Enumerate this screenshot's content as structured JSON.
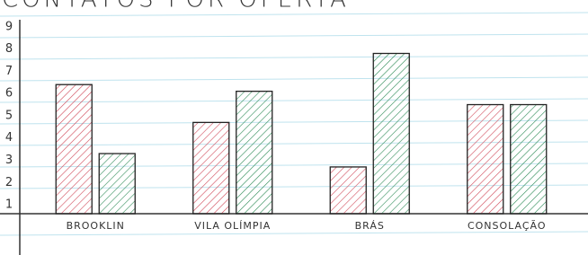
{
  "chart_data": {
    "type": "bar",
    "title": "CONTATOS POR OFERTA",
    "categories": [
      "BROOKLIN",
      "VILA OLÍMPIA",
      "BRÁS",
      "CONSOLAÇÃO"
    ],
    "series": [
      {
        "color": "#d04a5a",
        "values": [
          6.4,
          4.7,
          2.7,
          5.5
        ]
      },
      {
        "color": "#2e8b57",
        "values": [
          3.3,
          6.1,
          7.8,
          5.5
        ]
      }
    ],
    "ylim": [
      0.6,
      10.2
    ],
    "yticks": [
      1,
      2,
      3,
      4,
      5,
      6,
      7,
      8,
      9
    ]
  }
}
